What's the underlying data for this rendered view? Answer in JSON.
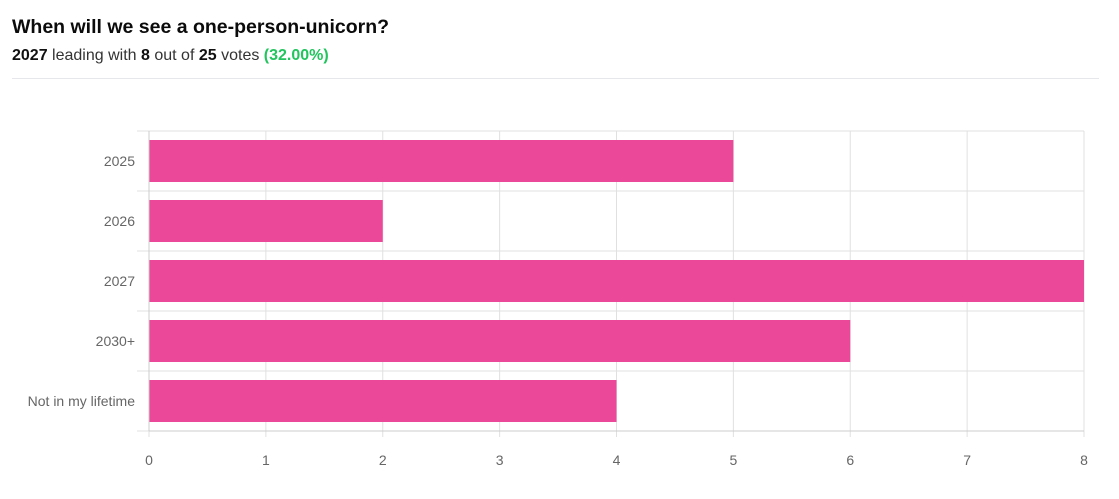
{
  "poll": {
    "title": "When will we see a one-person-unicorn?",
    "leader": "2027",
    "leading_word": "leading with",
    "leader_votes": "8",
    "out_of_word": "out of",
    "total_votes": "25",
    "votes_word": "votes",
    "percent": "(32.00%)"
  },
  "colors": {
    "bar": "#ec4899",
    "percent": "#21c45d",
    "grid": "#e0e0e0"
  },
  "chart_data": {
    "type": "bar",
    "orientation": "horizontal",
    "categories": [
      "2025",
      "2026",
      "2027",
      "2030+",
      "Not in my lifetime"
    ],
    "values": [
      5,
      2,
      8,
      6,
      4
    ],
    "xlim": [
      0,
      8
    ],
    "xticks": [
      "0",
      "1",
      "2",
      "3",
      "4",
      "5",
      "6",
      "7",
      "8"
    ],
    "grid": true,
    "legend": "none"
  }
}
